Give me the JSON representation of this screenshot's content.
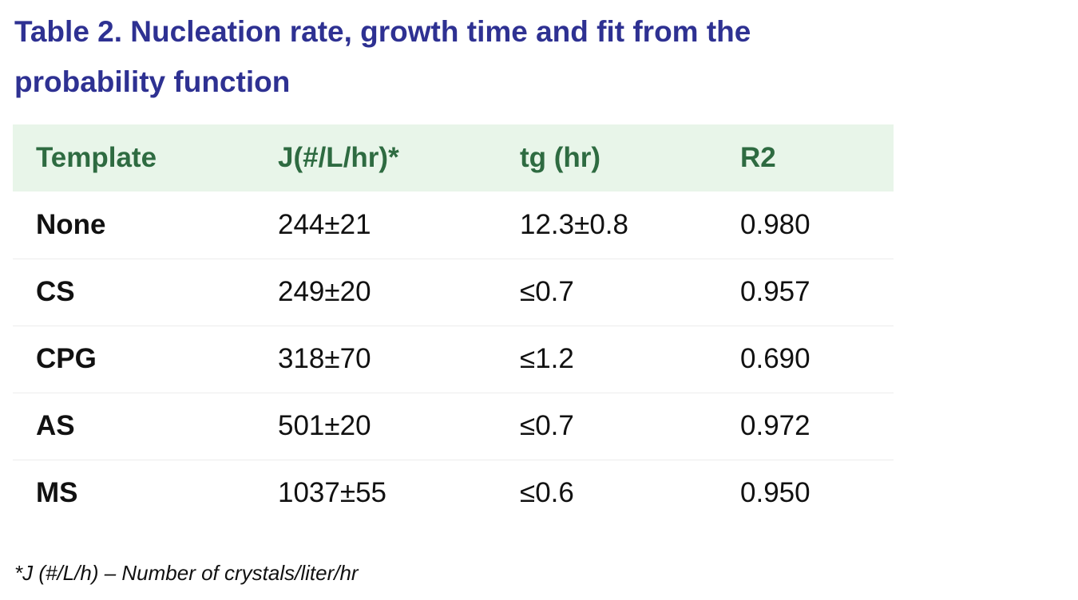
{
  "caption": "Table 2. Nucleation rate, growth time and fit from the probability function",
  "table": {
    "headers": [
      "Template",
      "J(#/L/hr)*",
      "tg (hr)",
      "R2"
    ],
    "rows": [
      [
        "None",
        "244±21",
        "12.3±0.8",
        "0.980"
      ],
      [
        "CS",
        "249±20",
        "≤0.7",
        "0.957"
      ],
      [
        "CPG",
        "318±70",
        "≤1.2",
        "0.690"
      ],
      [
        "AS",
        "501±20",
        "≤0.7",
        "0.972"
      ],
      [
        "MS",
        "1037±55",
        "≤0.6",
        "0.950"
      ]
    ]
  },
  "footnote": "*J (#/L/h) – Number of crystals/liter/hr",
  "colors": {
    "caption": "#2e3192",
    "header_text": "#2e6b41",
    "header_background": "#e8f5e9",
    "row_divider": "#ececec"
  }
}
